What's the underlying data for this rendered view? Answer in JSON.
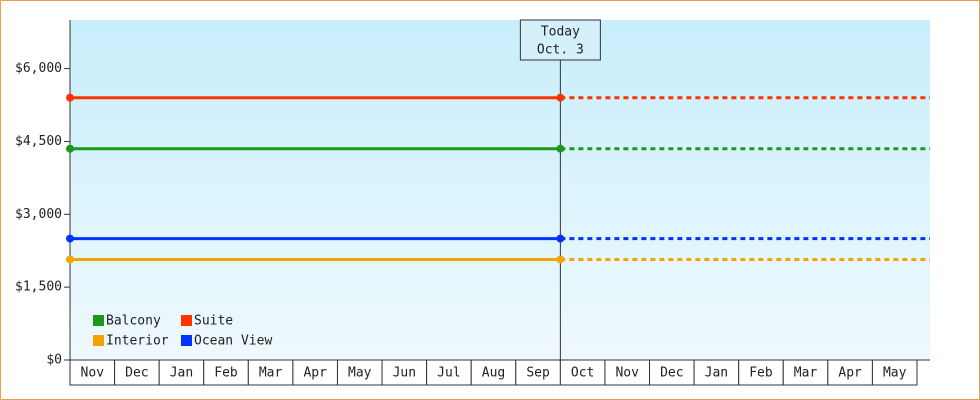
{
  "chart_data": {
    "type": "line",
    "categories": [
      "Nov",
      "Dec",
      "Jan",
      "Feb",
      "Mar",
      "Apr",
      "May",
      "Jun",
      "Jul",
      "Aug",
      "Sep",
      "Oct",
      "Nov",
      "Dec",
      "Jan",
      "Feb",
      "Mar",
      "Apr",
      "May"
    ],
    "series": [
      {
        "name": "Balcony",
        "color": "#1a9a1a",
        "value": 4350
      },
      {
        "name": "Suite",
        "color": "#ff3300",
        "value": 5400
      },
      {
        "name": "Interior",
        "color": "#f5a300",
        "value": 2070
      },
      {
        "name": "Ocean View",
        "color": "#0033ff",
        "value": 2500
      }
    ],
    "annotation": {
      "title": "Today",
      "date": "Oct. 3"
    },
    "ylim": [
      0,
      7000
    ],
    "yticks": [
      {
        "value": 0,
        "label": "$0"
      },
      {
        "value": 1500,
        "label": "$1,500"
      },
      {
        "value": 3000,
        "label": "$3,000"
      },
      {
        "value": 4500,
        "label": "$4,500"
      },
      {
        "value": 6000,
        "label": "$6,000"
      }
    ],
    "legend": "bottom-left"
  }
}
